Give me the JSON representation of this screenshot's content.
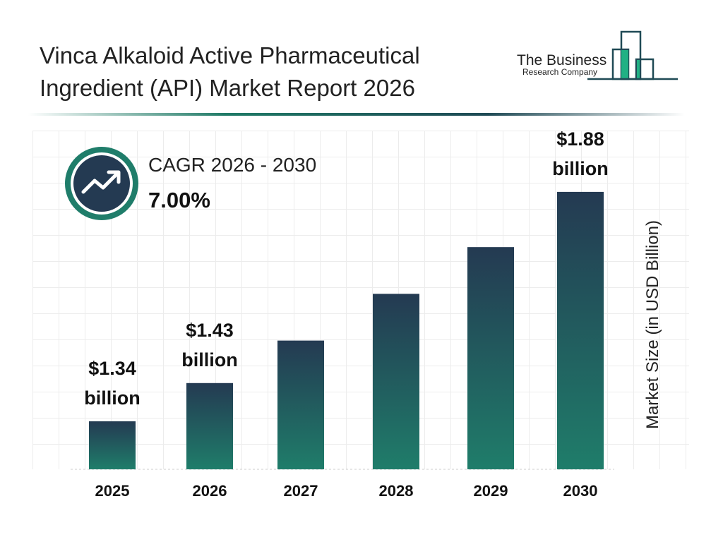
{
  "header": {
    "title_line1": "Vinca Alkaloid Active Pharmaceutical",
    "title_line2": "Ingredient (API) Market Report 2026"
  },
  "logo": {
    "line1": "The Business",
    "line2": "Research Company"
  },
  "cagr": {
    "label": "CAGR 2026 - 2030",
    "value": "7.00%",
    "icon": "trending-up-icon"
  },
  "colors": {
    "bar_top": "#243a52",
    "bar_bottom": "#1f7d6a",
    "accent": "#1f7a66"
  },
  "chart_data": {
    "type": "bar",
    "categories": [
      "2025",
      "2026",
      "2027",
      "2028",
      "2029",
      "2030"
    ],
    "values": [
      1.34,
      1.43,
      1.53,
      1.64,
      1.75,
      1.88
    ],
    "data_labels": [
      [
        "$1.34",
        "billion"
      ],
      [
        "$1.43",
        "billion"
      ],
      null,
      null,
      null,
      [
        "$1.88",
        "billion"
      ]
    ],
    "ylabel": "Market Size (in USD Billion)",
    "grid": true
  }
}
